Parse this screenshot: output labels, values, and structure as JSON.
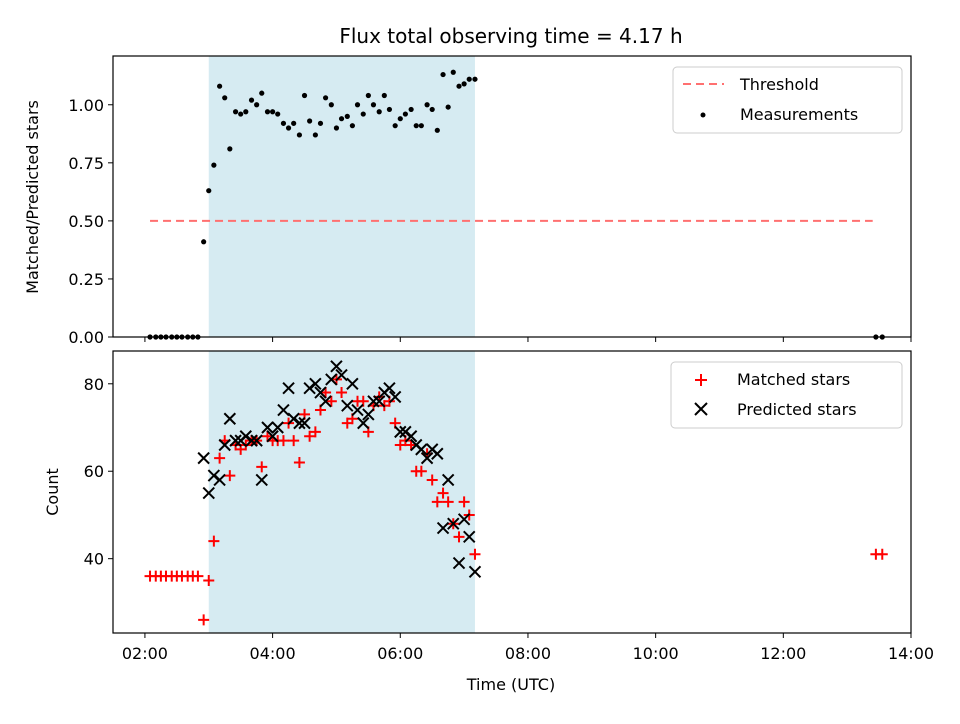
{
  "chart_data": {
    "title": "Flux total observing time = 4.17 h",
    "xlabel": "Time (UTC)",
    "x_unit": "hours UTC",
    "xlim": [
      1.5,
      14.0
    ],
    "x_ticks": [
      {
        "value": 2,
        "label": "02:00"
      },
      {
        "value": 4,
        "label": "04:00"
      },
      {
        "value": 6,
        "label": "06:00"
      },
      {
        "value": 8,
        "label": "08:00"
      },
      {
        "value": 10,
        "label": "10:00"
      },
      {
        "value": 12,
        "label": "12:00"
      },
      {
        "value": 14,
        "label": "14:00"
      }
    ],
    "shaded_span": {
      "start": 3.0,
      "end": 7.17,
      "color": "#add8e6"
    },
    "panels": [
      {
        "type": "scatter",
        "ylabel": "Matched/Predicted stars",
        "ylim": [
          0.0,
          1.21
        ],
        "y_ticks": [
          "0.00",
          "0.25",
          "0.50",
          "0.75",
          "1.00"
        ],
        "threshold": {
          "name": "Threshold",
          "y": 0.5,
          "x_start": 2.08,
          "x_end": 13.4,
          "color": "#ff7070"
        },
        "series": [
          {
            "name": "Measurements",
            "marker": "dot",
            "color": "#000000",
            "x": [
              2.08,
              2.17,
              2.25,
              2.33,
              2.42,
              2.5,
              2.58,
              2.67,
              2.75,
              2.83,
              2.92,
              3.0,
              3.08,
              3.17,
              3.25,
              3.33,
              3.42,
              3.5,
              3.58,
              3.67,
              3.75,
              3.83,
              3.92,
              4.0,
              4.08,
              4.17,
              4.25,
              4.33,
              4.42,
              4.5,
              4.58,
              4.67,
              4.75,
              4.83,
              4.92,
              5.0,
              5.08,
              5.17,
              5.25,
              5.33,
              5.42,
              5.5,
              5.58,
              5.67,
              5.75,
              5.83,
              5.92,
              6.0,
              6.08,
              6.17,
              6.25,
              6.33,
              6.42,
              6.5,
              6.58,
              6.67,
              6.75,
              6.83,
              6.92,
              7.0,
              7.08,
              7.17,
              13.45,
              13.55
            ],
            "y": [
              0.0,
              0.0,
              0.0,
              0.0,
              0.0,
              0.0,
              0.0,
              0.0,
              0.0,
              0.0,
              0.41,
              0.63,
              0.74,
              1.08,
              1.03,
              0.81,
              0.97,
              0.96,
              0.97,
              1.02,
              1.0,
              1.05,
              0.97,
              0.97,
              0.96,
              0.92,
              0.9,
              0.92,
              0.87,
              1.04,
              0.93,
              0.87,
              0.92,
              1.03,
              1.0,
              0.9,
              0.94,
              0.95,
              0.91,
              1.0,
              0.96,
              1.04,
              1.0,
              0.97,
              1.04,
              0.98,
              0.91,
              0.94,
              0.96,
              0.98,
              0.91,
              0.91,
              1.0,
              0.98,
              0.89,
              1.13,
              0.99,
              1.14,
              1.08,
              1.09,
              1.11,
              1.11,
              0.0,
              0.0
            ]
          }
        ]
      },
      {
        "type": "scatter",
        "ylabel": "Count",
        "ylim": [
          23,
          87.5
        ],
        "y_ticks": [
          "40",
          "60",
          "80"
        ],
        "series": [
          {
            "name": "Matched stars",
            "marker": "plus",
            "color": "#ff0000",
            "x": [
              2.08,
              2.17,
              2.25,
              2.33,
              2.42,
              2.5,
              2.58,
              2.67,
              2.75,
              2.83,
              2.92,
              3.0,
              3.08,
              3.17,
              3.25,
              3.33,
              3.42,
              3.5,
              3.58,
              3.67,
              3.75,
              3.83,
              3.92,
              4.0,
              4.08,
              4.17,
              4.25,
              4.33,
              4.42,
              4.5,
              4.58,
              4.67,
              4.75,
              4.83,
              4.92,
              5.0,
              5.08,
              5.17,
              5.25,
              5.33,
              5.42,
              5.5,
              5.58,
              5.67,
              5.75,
              5.83,
              5.92,
              6.0,
              6.08,
              6.17,
              6.25,
              6.33,
              6.42,
              6.5,
              6.58,
              6.67,
              6.75,
              6.83,
              6.92,
              7.0,
              7.08,
              7.17,
              13.45,
              13.55
            ],
            "y": [
              36,
              36,
              36,
              36,
              36,
              36,
              36,
              36,
              36,
              36,
              26,
              35,
              44,
              63,
              67,
              59,
              66,
              65,
              66,
              67,
              67,
              61,
              68,
              67,
              67,
              67,
              71,
              67,
              62,
              73,
              68,
              69,
              74,
              78,
              76,
              81,
              78,
              71,
              72,
              76,
              76,
              69,
              75,
              77,
              75,
              76,
              71,
              66,
              67,
              66,
              60,
              60,
              64,
              58,
              53,
              55,
              53,
              48,
              45,
              53,
              50,
              41,
              41,
              41
            ]
          },
          {
            "name": "Predicted stars",
            "marker": "x",
            "color": "#000000",
            "x": [
              2.92,
              3.0,
              3.08,
              3.17,
              3.25,
              3.33,
              3.42,
              3.5,
              3.58,
              3.67,
              3.75,
              3.83,
              3.92,
              4.0,
              4.08,
              4.17,
              4.25,
              4.33,
              4.42,
              4.5,
              4.58,
              4.67,
              4.75,
              4.83,
              4.92,
              5.0,
              5.08,
              5.17,
              5.25,
              5.33,
              5.42,
              5.5,
              5.58,
              5.67,
              5.75,
              5.83,
              5.92,
              6.0,
              6.08,
              6.17,
              6.25,
              6.33,
              6.42,
              6.5,
              6.58,
              6.67,
              6.75,
              6.83,
              6.92,
              7.0,
              7.08,
              7.17
            ],
            "y": [
              63,
              55,
              59,
              58,
              66,
              72,
              67,
              67,
              68,
              67,
              67,
              58,
              70,
              68,
              70,
              74,
              79,
              72,
              71,
              71,
              79,
              80,
              78,
              76,
              81,
              84,
              82,
              75,
              80,
              74,
              71,
              73,
              76,
              76,
              78,
              79,
              77,
              69,
              69,
              68,
              66,
              65,
              63,
              65,
              64,
              47,
              58,
              48,
              39,
              49,
              45,
              37
            ]
          }
        ]
      }
    ]
  }
}
